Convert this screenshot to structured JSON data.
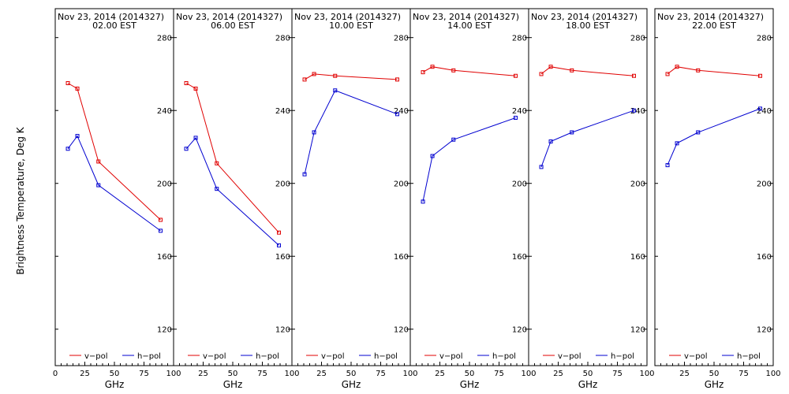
{
  "chart_data": {
    "type": "line",
    "ylabel": "Brightness Temperature, Deg K",
    "xlabel": "GHz",
    "xlim": [
      0,
      100
    ],
    "ylim": [
      100,
      295
    ],
    "x_ticks": [
      0,
      25,
      50,
      75,
      100
    ],
    "y_ticks": [
      120,
      160,
      200,
      240,
      280
    ],
    "legend": [
      "v−pol",
      "h−pol"
    ],
    "legend_placement": "bottom",
    "colors": {
      "v": "#e00000",
      "h": "#0000d0"
    },
    "panels": [
      {
        "title1": "Nov 23, 2014 (2014327)",
        "title2": "02.00 EST",
        "v": {
          "x": [
            10.7,
            18.7,
            36.5,
            89.0
          ],
          "y": [
            255,
            252,
            212,
            180
          ]
        },
        "h": {
          "x": [
            10.7,
            18.7,
            36.5,
            89.0
          ],
          "y": [
            219,
            226,
            199,
            174
          ]
        }
      },
      {
        "title1": "Nov 23, 2014 (2014327)",
        "title2": "06.00 EST",
        "v": {
          "x": [
            10.7,
            18.7,
            36.5,
            89.0
          ],
          "y": [
            255,
            252,
            211,
            173
          ]
        },
        "h": {
          "x": [
            10.7,
            18.7,
            36.5,
            89.0
          ],
          "y": [
            219,
            225,
            197,
            166
          ]
        }
      },
      {
        "title1": "Nov 23, 2014 (2014327)",
        "title2": "10.00 EST",
        "v": {
          "x": [
            10.7,
            18.7,
            36.5,
            89.0
          ],
          "y": [
            257,
            260,
            259,
            257
          ]
        },
        "h": {
          "x": [
            10.7,
            18.7,
            36.5,
            89.0
          ],
          "y": [
            205,
            228,
            251,
            238
          ]
        }
      },
      {
        "title1": "Nov 23, 2014 (2014327)",
        "title2": "14.00 EST",
        "v": {
          "x": [
            10.7,
            18.7,
            36.5,
            89.0
          ],
          "y": [
            261,
            264,
            262,
            259
          ]
        },
        "h": {
          "x": [
            10.7,
            18.7,
            36.5,
            89.0
          ],
          "y": [
            190,
            215,
            224,
            236
          ]
        }
      },
      {
        "title1": "Nov 23, 2014 (2014327)",
        "title2": "18.00 EST",
        "v": {
          "x": [
            10.7,
            18.7,
            36.5,
            89.0
          ],
          "y": [
            260,
            264,
            262,
            259
          ]
        },
        "h": {
          "x": [
            10.7,
            18.7,
            36.5,
            89.0
          ],
          "y": [
            209,
            223,
            228,
            240
          ]
        }
      },
      {
        "title1": "Nov 23, 2014 (2014327)",
        "title2": "22.00 EST",
        "v": {
          "x": [
            10.7,
            18.7,
            36.5,
            89.0
          ],
          "y": [
            260,
            264,
            262,
            259
          ]
        },
        "h": {
          "x": [
            10.7,
            18.7,
            36.5,
            89.0
          ],
          "y": [
            210,
            222,
            228,
            241
          ]
        }
      }
    ]
  }
}
